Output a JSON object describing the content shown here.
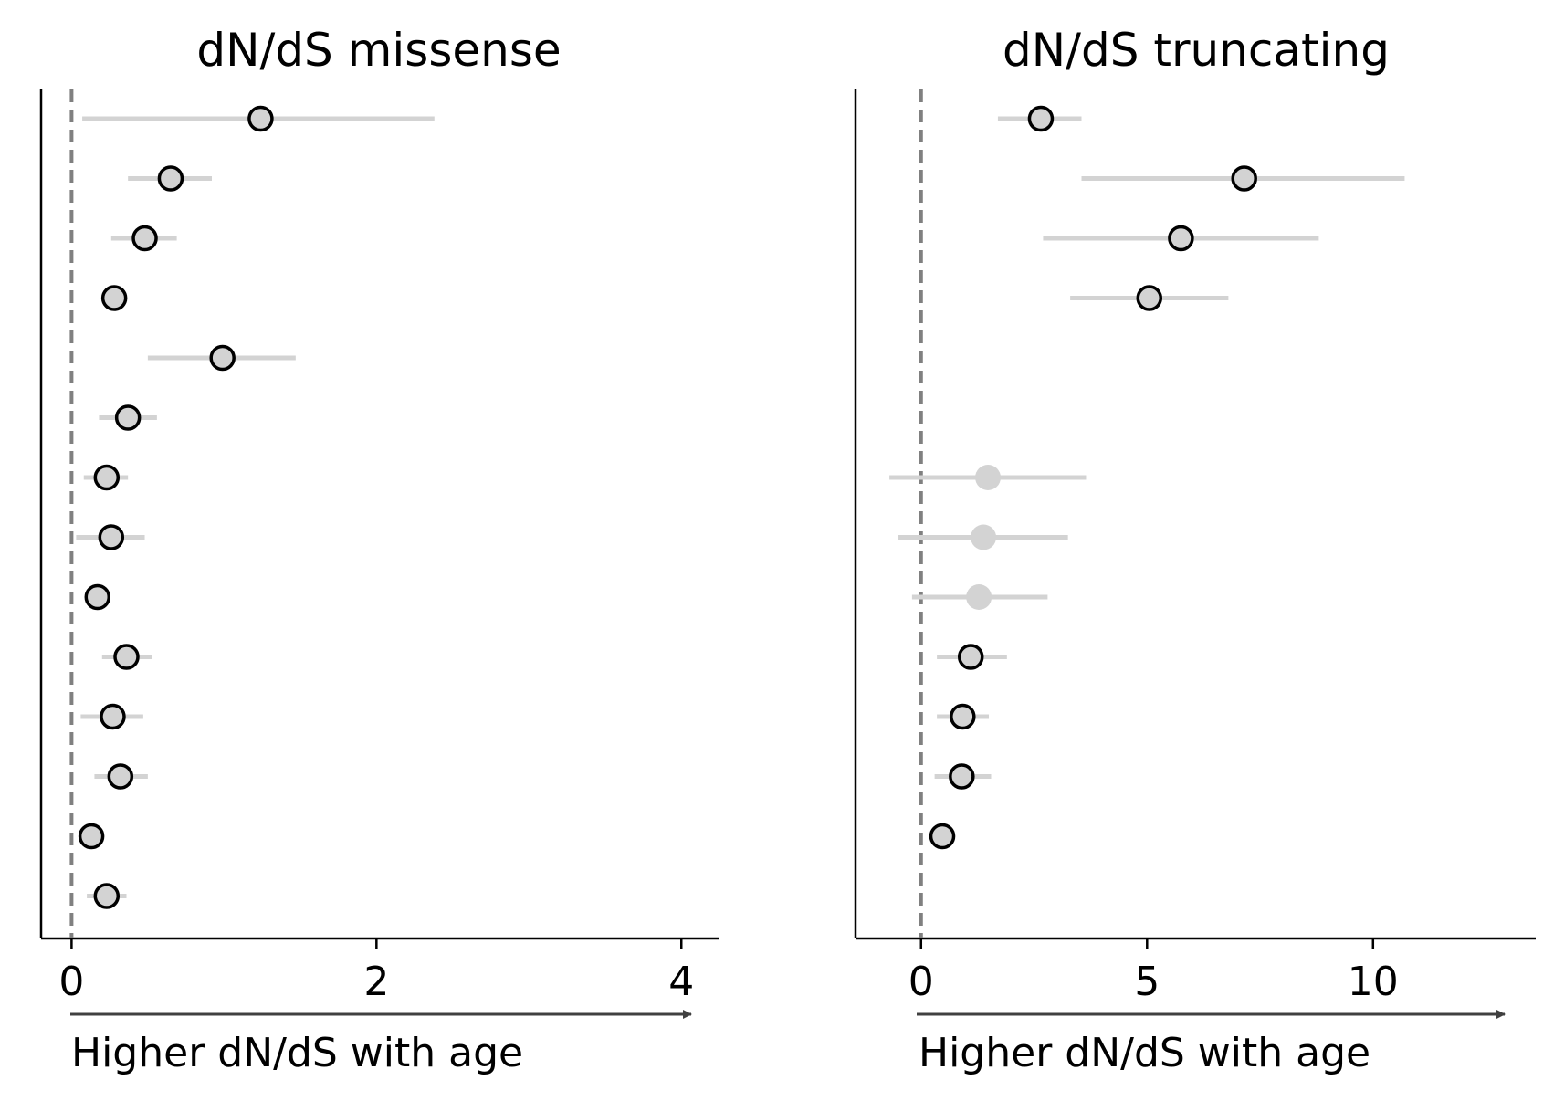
{
  "colors": {
    "errorbar": "#d3d3d3",
    "marker_fill": "#d3d3d3",
    "marker_edge": "#000000",
    "reference_line": "#808080",
    "arrow": "#404040",
    "axis": "#000000"
  },
  "chart_data": [
    {
      "type": "scatter",
      "title": "dN/dS missense",
      "xlabel": "Higher dN/dS with age",
      "xlim": [
        -0.2,
        4.25
      ],
      "xticks": [
        0,
        2,
        4
      ],
      "xtick_labels": [
        "0",
        "2",
        "4"
      ],
      "reference_line_x": 0,
      "grid": false,
      "rows": [
        {
          "value": 1.24,
          "lower": 0.07,
          "upper": 2.38,
          "significant": true
        },
        {
          "value": 0.65,
          "lower": 0.37,
          "upper": 0.92,
          "significant": true
        },
        {
          "value": 0.48,
          "lower": 0.26,
          "upper": 0.69,
          "significant": true
        },
        {
          "value": 0.28,
          "lower": 0.21,
          "upper": 0.35,
          "significant": true
        },
        {
          "value": 0.99,
          "lower": 0.5,
          "upper": 1.47,
          "significant": true
        },
        {
          "value": 0.37,
          "lower": 0.18,
          "upper": 0.56,
          "significant": true
        },
        {
          "value": 0.23,
          "lower": 0.08,
          "upper": 0.37,
          "significant": true
        },
        {
          "value": 0.26,
          "lower": 0.03,
          "upper": 0.48,
          "significant": true
        },
        {
          "value": 0.17,
          "lower": 0.12,
          "upper": 0.22,
          "significant": true
        },
        {
          "value": 0.36,
          "lower": 0.2,
          "upper": 0.53,
          "significant": true
        },
        {
          "value": 0.27,
          "lower": 0.06,
          "upper": 0.47,
          "significant": true
        },
        {
          "value": 0.32,
          "lower": 0.15,
          "upper": 0.5,
          "significant": true
        },
        {
          "value": 0.13,
          "lower": 0.08,
          "upper": 0.18,
          "significant": true
        },
        {
          "value": 0.23,
          "lower": 0.1,
          "upper": 0.36,
          "significant": true
        }
      ]
    },
    {
      "type": "scatter",
      "title": "dN/dS truncating",
      "xlabel": "Higher dN/dS with age",
      "xlim": [
        -1.45,
        13.6
      ],
      "xticks": [
        0,
        5,
        10
      ],
      "xtick_labels": [
        "0",
        "5",
        "10"
      ],
      "reference_line_x": 0,
      "grid": false,
      "rows": [
        {
          "value": 2.65,
          "lower": 1.7,
          "upper": 3.55,
          "significant": true
        },
        {
          "value": 7.15,
          "lower": 3.55,
          "upper": 10.7,
          "significant": true
        },
        {
          "value": 5.75,
          "lower": 2.7,
          "upper": 8.8,
          "significant": true
        },
        {
          "value": 5.05,
          "lower": 3.3,
          "upper": 6.8,
          "significant": true
        },
        {
          "value": null,
          "lower": null,
          "upper": null,
          "significant": false
        },
        {
          "value": null,
          "lower": null,
          "upper": null,
          "significant": false
        },
        {
          "value": 1.48,
          "lower": -0.7,
          "upper": 3.65,
          "significant": false
        },
        {
          "value": 1.38,
          "lower": -0.5,
          "upper": 3.25,
          "significant": false
        },
        {
          "value": 1.28,
          "lower": -0.2,
          "upper": 2.8,
          "significant": false
        },
        {
          "value": 1.1,
          "lower": 0.35,
          "upper": 1.9,
          "significant": true
        },
        {
          "value": 0.92,
          "lower": 0.35,
          "upper": 1.5,
          "significant": true
        },
        {
          "value": 0.9,
          "lower": 0.3,
          "upper": 1.55,
          "significant": true
        },
        {
          "value": 0.47,
          "lower": 0.32,
          "upper": 0.6,
          "significant": true
        },
        {
          "value": null,
          "lower": null,
          "upper": null,
          "significant": false
        }
      ]
    }
  ]
}
